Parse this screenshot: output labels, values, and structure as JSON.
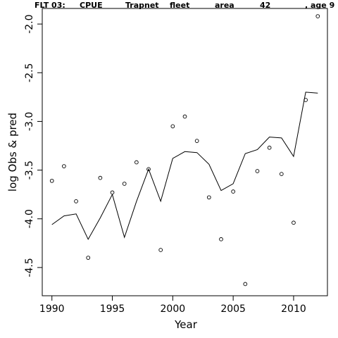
{
  "chart_data": {
    "type": "scatter",
    "title_parts": [
      "FLT 03:",
      "CPUE",
      "Trapnet",
      "fleet",
      "area",
      "42",
      ", age 9"
    ],
    "xlabel": "Year",
    "ylabel": "log Obs & pred",
    "xlim": [
      1989.2,
      2012.8
    ],
    "ylim": [
      -4.79,
      -1.84
    ],
    "x_ticks": [
      1990,
      1995,
      2000,
      2005,
      2010
    ],
    "y_ticks": [
      -2.0,
      -2.5,
      -3.0,
      -3.5,
      -4.0,
      -4.5
    ],
    "y_tick_labels": [
      "-2.0",
      "-2.5",
      "-3.0",
      "-3.5",
      "-4.0",
      "-4.5"
    ],
    "grid": false,
    "series": [
      {
        "style": "points",
        "x": [
          1990,
          1991,
          1992,
          1993,
          1994,
          1995,
          1996,
          1997,
          1998,
          1999,
          2000,
          2001,
          2002,
          2003,
          2004,
          2005,
          2006,
          2007,
          2008,
          2009,
          2010,
          2011,
          2012
        ],
        "y": [
          -3.61,
          -3.46,
          -3.82,
          -4.4,
          -3.58,
          -3.73,
          -3.64,
          -3.42,
          -3.49,
          -4.32,
          -3.05,
          -2.95,
          -3.2,
          -3.78,
          -4.21,
          -3.72,
          -4.67,
          -3.51,
          -3.27,
          -3.54,
          -4.04,
          -2.78,
          -1.92
        ]
      },
      {
        "style": "line",
        "x": [
          1990,
          1991,
          1992,
          1993,
          1994,
          1995,
          1996,
          1997,
          1998,
          1999,
          2000,
          2001,
          2002,
          2003,
          2004,
          2005,
          2006,
          2007,
          2008,
          2009,
          2010,
          2011,
          2012
        ],
        "y": [
          -4.06,
          -3.97,
          -3.95,
          -4.21,
          -3.99,
          -3.75,
          -4.19,
          -3.82,
          -3.49,
          -3.82,
          -3.38,
          -3.31,
          -3.32,
          -3.44,
          -3.71,
          -3.64,
          -3.33,
          -3.29,
          -3.16,
          -3.17,
          -3.36,
          -2.7,
          -2.71
        ]
      }
    ]
  }
}
